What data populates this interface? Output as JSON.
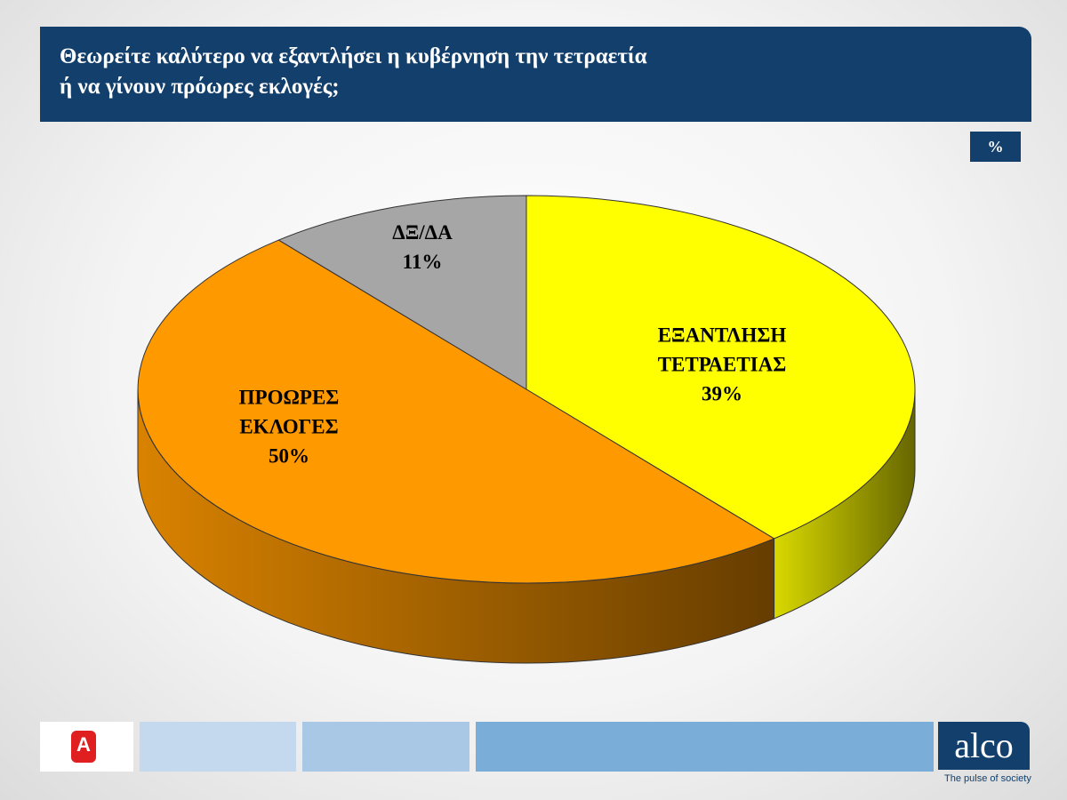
{
  "chart_data": {
    "type": "pie",
    "title": [
      "Θεωρείτε καλύτερο να εξαντλήσει η κυβέρνηση την τετραετία",
      "ή να γίνουν πρόωρες εκλογές;"
    ],
    "unit": "%",
    "categories": [
      "ΕΞΑΝΤΛΗΣΗ ΤΕΤΡΑΕΤΙΑΣ",
      "ΠΡΟΩΡΕΣ ΕΚΛΟΓΕΣ",
      "ΔΞ/ΔΑ"
    ],
    "values": [
      39,
      50,
      11
    ],
    "value_labels": [
      "39%",
      "50%",
      "11%"
    ],
    "colors": [
      "#ffff00",
      "#ff9900",
      "#a6a6a6"
    ]
  },
  "footer": {
    "brand": "alco",
    "tagline": "The pulse of society"
  }
}
